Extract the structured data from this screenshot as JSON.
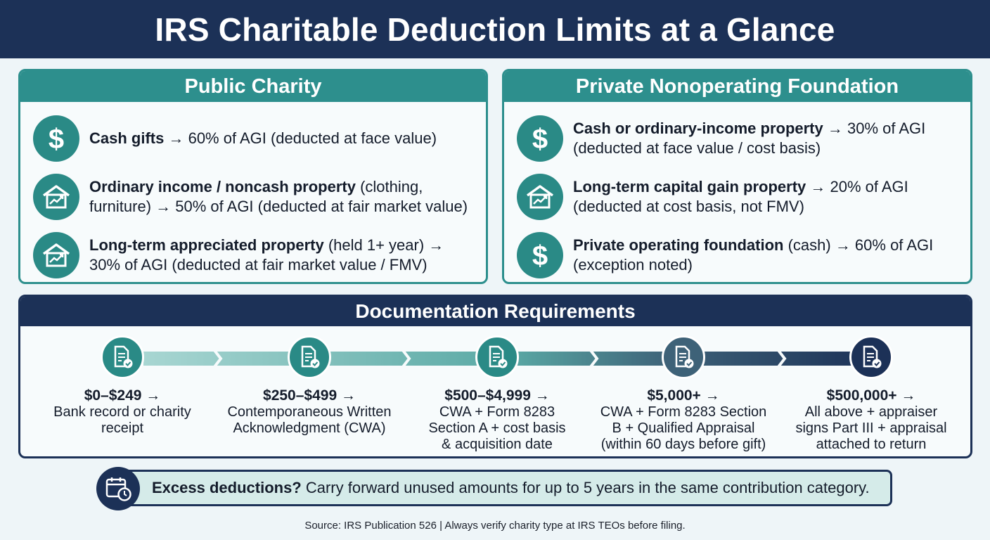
{
  "title": "IRS Charitable Deduction Limits at a Glance",
  "public_charity": {
    "heading": "Public Charity",
    "items": [
      {
        "icon": "dollar-icon",
        "bold": "Cash gifts",
        "line1": " → 60% of AGI (deducted at face value)",
        "line2": ""
      },
      {
        "icon": "house-chart-icon",
        "bold": "Ordinary income / noncash property",
        "line1": " (clothing,",
        "line2": "furniture)  → 50% of AGI (deducted at fair market value)"
      },
      {
        "icon": "house-chart-icon",
        "bold": "Long-term appreciated property",
        "line1": " (held 1+ year) →",
        "line2": "30% of AGI (deducted at fair market value / FMV)"
      }
    ]
  },
  "private_foundation": {
    "heading": "Private Nonoperating Foundation",
    "items": [
      {
        "icon": "dollar-icon",
        "bold": "Cash or ordinary-income property",
        "line1": " → 30% of AGI",
        "line2": "(deducted at face value / cost basis)"
      },
      {
        "icon": "house-chart-icon",
        "bold": "Long-term capital gain property",
        "line1": " → 20% of AGI",
        "line2": "(deducted at cost basis, not FMV)"
      },
      {
        "icon": "dollar-icon",
        "bold": "Private operating foundation",
        "line1": " (cash) → 60% of AGI",
        "line2": "(exception noted)"
      }
    ]
  },
  "documentation": {
    "heading": "Documentation Requirements",
    "steps": [
      {
        "amount": "$0–$249 →",
        "desc": [
          "Bank record or charity",
          "receipt"
        ]
      },
      {
        "amount": "$250–$499 →",
        "desc": [
          "Contemporaneous Written",
          "Acknowledgment (CWA)"
        ]
      },
      {
        "amount": "$500–$4,999 →",
        "desc": [
          "CWA + Form 8283",
          "Section A + cost basis",
          "& acquisition date"
        ]
      },
      {
        "amount": "$5,000+ →",
        "desc": [
          "CWA + Form 8283 Section",
          "B + Qualified Appraisal",
          "(within 60 days before gift)"
        ]
      },
      {
        "amount": "$500,000+ →",
        "desc": [
          "All above + appraiser",
          "signs Part III + appraisal",
          "attached to return"
        ]
      }
    ],
    "step_colors": [
      "#2a8a86",
      "#2a8a86",
      "#2a8a86",
      "#3e6278",
      "#1c3157"
    ]
  },
  "callout": {
    "bold": "Excess deductions?",
    "text": " Carry forward unused amounts for up to 5 years in the same contribution category.",
    "icon": "calendar-clock-icon"
  },
  "source": "Source: IRS Publication 526 | Always verify charity type at IRS TEOs before filing.",
  "colors": {
    "navy": "#1c3157",
    "teal": "#2d8f8d",
    "background": "#eef5f8"
  }
}
